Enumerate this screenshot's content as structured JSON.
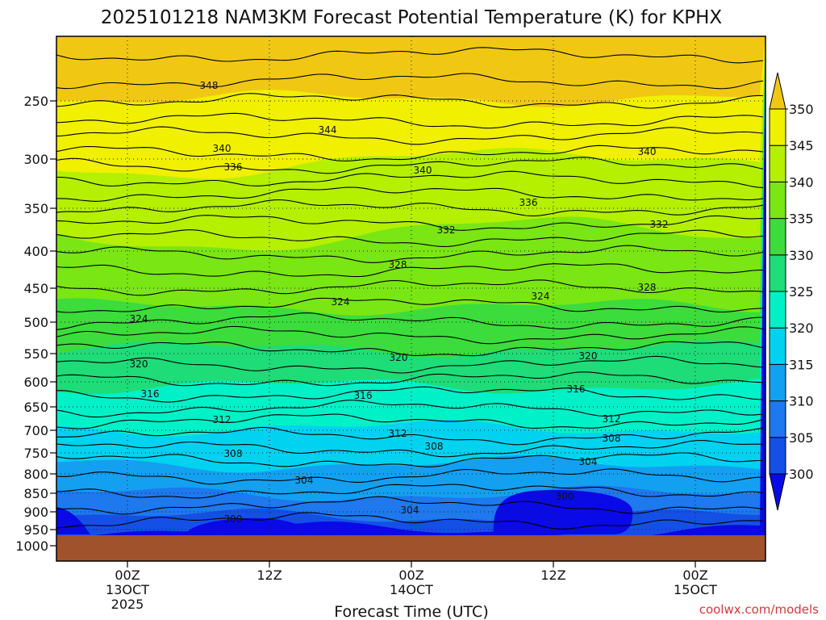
{
  "chart_data": {
    "type": "contour",
    "title": "2025101218 NAM3KM Forecast Potential Temperature (K) for KPHX",
    "xlabel": "Forecast Time (UTC)",
    "ylabel": "",
    "credit": "coolwx.com/models",
    "y_ticks": [
      "250",
      "300",
      "350",
      "400",
      "450",
      "500",
      "550",
      "600",
      "650",
      "700",
      "750",
      "800",
      "850",
      "900",
      "950",
      "1000"
    ],
    "x_ticks": [
      {
        "lines": [
          "00Z",
          "13OCT",
          "2025"
        ]
      },
      {
        "lines": [
          "12Z"
        ]
      },
      {
        "lines": [
          "00Z",
          "14OCT"
        ]
      },
      {
        "lines": [
          "12Z"
        ]
      },
      {
        "lines": [
          "00Z",
          "15OCT"
        ]
      }
    ],
    "colorbar": {
      "levels": [
        "300",
        "305",
        "310",
        "315",
        "320",
        "325",
        "330",
        "335",
        "340",
        "345",
        "350"
      ],
      "colors": [
        "#0a0ae6",
        "#1450e6",
        "#1e78ee",
        "#14a0f0",
        "#00d2f0",
        "#00f0c8",
        "#1edc78",
        "#3cdc3c",
        "#7ae614",
        "#b4f000",
        "#f0f000",
        "#f0c814"
      ]
    },
    "contour_labels": [
      "348",
      "344",
      "340",
      "336",
      "340",
      "340",
      "336",
      "332",
      "332",
      "328",
      "328",
      "324",
      "324",
      "324",
      "320",
      "320",
      "320",
      "316",
      "316",
      "316",
      "312",
      "312",
      "312",
      "308",
      "308",
      "308",
      "304",
      "304",
      "304",
      "300",
      "300"
    ],
    "contour_label_slots": [
      {
        "text": 0,
        "row": 0,
        "col": 0
      },
      {
        "text": 1,
        "row": 1,
        "col": 0
      },
      {
        "text": 2,
        "row": 2,
        "col": 0
      },
      {
        "text": 3,
        "row": 2,
        "col": 1
      },
      {
        "text": 4,
        "row": 2,
        "col": 2
      },
      {
        "text": 5,
        "row": 2,
        "col": 3
      },
      {
        "text": 6,
        "row": 3,
        "col": 0
      },
      {
        "text": 7,
        "row": 4,
        "col": 0
      },
      {
        "text": 8,
        "row": 4,
        "col": 1
      },
      {
        "text": 9,
        "row": 5,
        "col": 0
      },
      {
        "text": 10,
        "row": 5,
        "col": 1
      },
      {
        "text": 11,
        "row": 6,
        "col": 0
      },
      {
        "text": 12,
        "row": 6,
        "col": 1
      },
      {
        "text": 13,
        "row": 6,
        "col": 2
      },
      {
        "text": 14,
        "row": 7,
        "col": 0
      },
      {
        "text": 15,
        "row": 7,
        "col": 1
      },
      {
        "text": 16,
        "row": 7,
        "col": 2
      },
      {
        "text": 17,
        "row": 8,
        "col": 0
      },
      {
        "text": 18,
        "row": 8,
        "col": 1
      },
      {
        "text": 19,
        "row": 8,
        "col": 2
      },
      {
        "text": 20,
        "row": 9,
        "col": 0
      },
      {
        "text": 21,
        "row": 9,
        "col": 1
      },
      {
        "text": 22,
        "row": 9,
        "col": 2
      },
      {
        "text": 23,
        "row": 10,
        "col": 0
      },
      {
        "text": 24,
        "row": 10,
        "col": 1
      },
      {
        "text": 25,
        "row": 10,
        "col": 2
      },
      {
        "text": 26,
        "row": 11,
        "col": 0
      },
      {
        "text": 27,
        "row": 11,
        "col": 1
      },
      {
        "text": 28,
        "row": 11,
        "col": 2
      },
      {
        "text": 29,
        "row": 12,
        "col": 0
      },
      {
        "text": 30,
        "row": 12,
        "col": 1
      }
    ],
    "ground_color": "#a0522d"
  }
}
